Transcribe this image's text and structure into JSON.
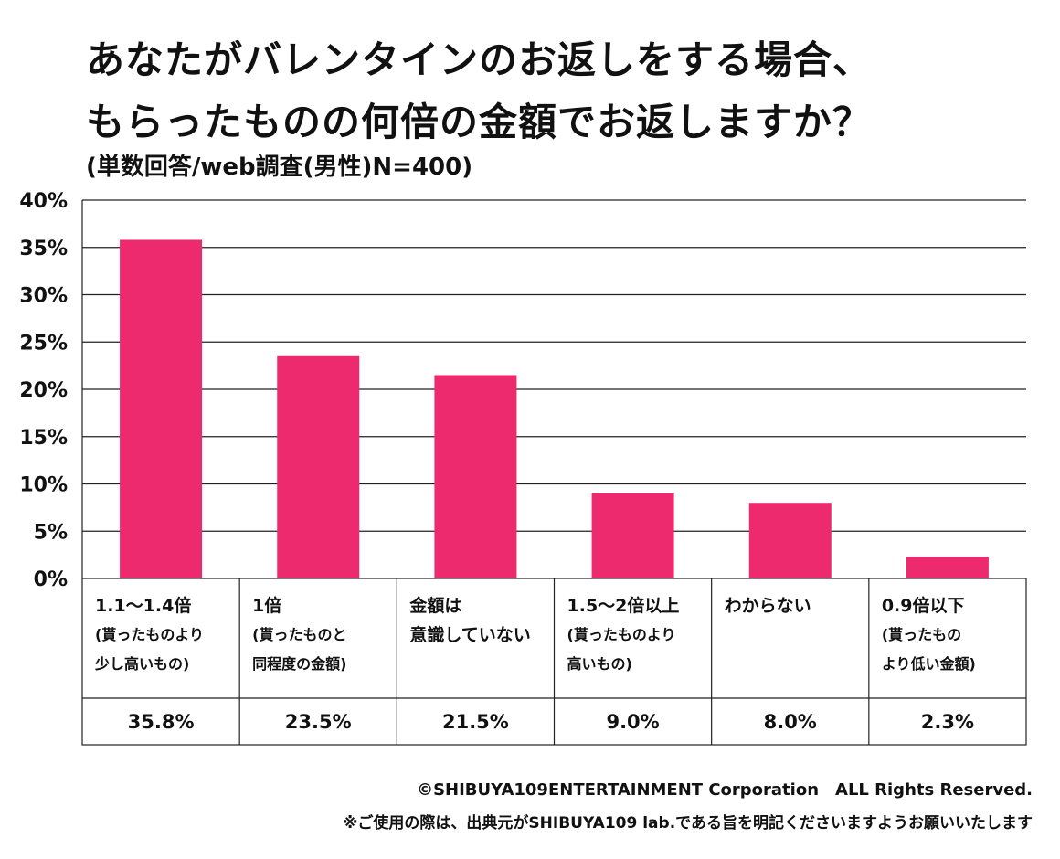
{
  "title": {
    "line1": "あなたがバレンタインのお返しをする場合、",
    "line2": "もらったものの何倍の金額でお返しますか？"
  },
  "subtitle": "(単数回答/web調査(男性)N=400)",
  "chart_data": {
    "type": "bar",
    "title": "あなたがバレンタインのお返しをする場合、もらったものの何倍の金額でお返しますか？",
    "categories": [
      "1.1〜1.4倍 (貰ったものより少し高いもの)",
      "1倍 (貰ったものと同程度の金額)",
      "金額は意識していない",
      "1.5〜2倍以上 (貰ったものより高いもの)",
      "わからない",
      "0.9倍以下 (貰ったものより低い金額)"
    ],
    "category_lines": [
      [
        "1.1〜1.4倍",
        "(貰ったものより",
        "少し高いもの)"
      ],
      [
        "1倍",
        "(貰ったものと",
        "同程度の金額)"
      ],
      [
        "金額は",
        "意識していない"
      ],
      [
        "1.5〜2倍以上",
        "(貰ったものより",
        "高いもの)"
      ],
      [
        "わからない"
      ],
      [
        "0.9倍以下",
        "(貰ったもの",
        "より低い金額)"
      ]
    ],
    "values": [
      35.8,
      23.5,
      21.5,
      9.0,
      8.0,
      2.3
    ],
    "value_labels": [
      "35.8%",
      "23.5%",
      "21.5%",
      "9.0%",
      "8.0%",
      "2.3%"
    ],
    "yticks": [
      "0%",
      "5%",
      "10%",
      "15%",
      "20%",
      "25%",
      "30%",
      "35%",
      "40%"
    ],
    "ylim": [
      0,
      40
    ],
    "xlabel": "",
    "ylabel": "",
    "grid": true,
    "bar_color": "#ee2a6e"
  },
  "footer": {
    "copyright": "©SHIBUYA109ENTERTAINMENT Corporation　ALL Rights Reserved.",
    "note": "※ご使用の際は、出典元がSHIBUYA109 lab.である旨を明記くださいますようお願いいたします"
  }
}
